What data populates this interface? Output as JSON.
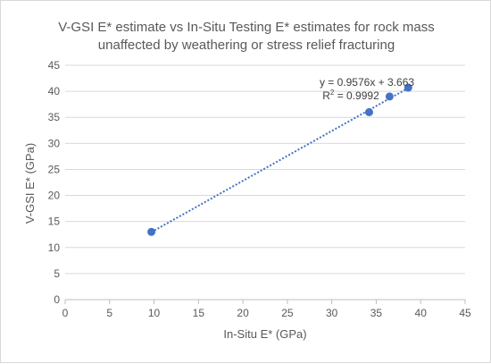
{
  "chart_data": {
    "type": "scatter",
    "title_lines": [
      "V-GSI E* estimate vs In-Situ Testing E* estimates for rock mass",
      "unaffected by weathering or stress relief fracturing"
    ],
    "xlabel": "In-Situ E* (GPa)",
    "ylabel": "V-GSI E* (GPa)",
    "xlim": [
      0,
      45
    ],
    "ylim": [
      0,
      45
    ],
    "xticks": [
      0,
      5,
      10,
      15,
      20,
      25,
      30,
      35,
      40,
      45
    ],
    "yticks": [
      0,
      5,
      10,
      15,
      20,
      25,
      30,
      35,
      40,
      45
    ],
    "grid": "horizontal",
    "series": [
      {
        "points": [
          {
            "x": 9.7,
            "y": 13.0
          },
          {
            "x": 34.2,
            "y": 36.0
          },
          {
            "x": 36.5,
            "y": 39.0
          },
          {
            "x": 38.6,
            "y": 40.7
          }
        ],
        "color": "#4472c4"
      }
    ],
    "trendline": {
      "type": "linear",
      "slope": 0.9576,
      "intercept": 3.663,
      "x_range": [
        9.7,
        38.6
      ],
      "color": "#4472c4",
      "style": "dotted",
      "equation_label": "y = 0.9576x + 3.663",
      "r2_prefix": "R",
      "r2_sup": "2",
      "r2_suffix": " = 0.9992"
    },
    "colors": {
      "gridline": "#d9d9d9",
      "text": "#595959",
      "axis": "#bfbfbf"
    }
  }
}
